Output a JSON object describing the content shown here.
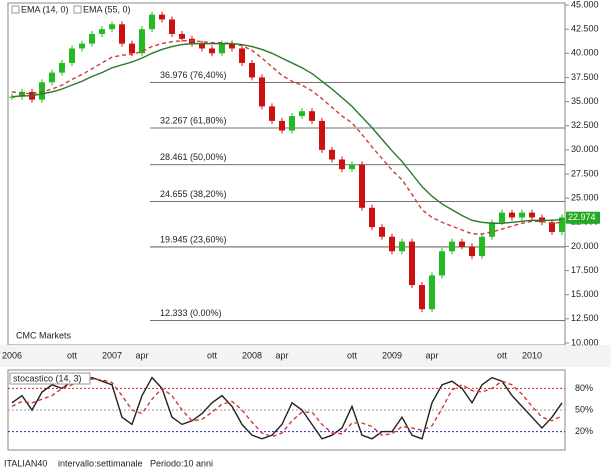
{
  "chart_data": [
    {
      "type": "candlestick",
      "watermark": "CMC Markets",
      "categories": [
        "2006",
        null,
        null,
        null,
        null,
        null,
        "ott",
        null,
        null,
        null,
        "2007",
        null,
        null,
        "apr",
        null,
        null,
        null,
        null,
        null,
        null,
        "ott",
        null,
        null,
        null,
        "2008",
        null,
        null,
        "apr",
        null,
        null,
        null,
        null,
        null,
        null,
        "ott",
        null,
        null,
        null,
        "2009",
        null,
        null,
        null,
        "apr",
        null,
        null,
        null,
        null,
        null,
        null,
        "ott",
        null,
        null,
        "2010",
        null,
        null,
        null
      ],
      "values": [
        35.5,
        36.0,
        35.2,
        37.0,
        38.0,
        39.0,
        40.5,
        41.0,
        42.0,
        42.5,
        43.0,
        41.0,
        40.0,
        42.5,
        44.0,
        43.5,
        42.0,
        41.5,
        41.0,
        40.5,
        40.0,
        41.0,
        40.5,
        39.0,
        37.5,
        34.5,
        33.0,
        32.0,
        33.5,
        34.0,
        33.0,
        30.0,
        29.0,
        28.0,
        28.5,
        24.0,
        22.0,
        21.0,
        19.5,
        20.5,
        16.0,
        13.5,
        17.0,
        19.5,
        20.5,
        20.0,
        19.0,
        21.0,
        22.5,
        23.5,
        23.0,
        23.5,
        23.0,
        22.5,
        21.5,
        23.0
      ],
      "up_color": "#22bb22",
      "down_color": "#cc1111",
      "series": [
        {
          "name": "EMA (14, 0)",
          "color": "#d03a3a",
          "dashed": true,
          "values": [
            36.0,
            35.9,
            35.8,
            36.0,
            36.3,
            36.7,
            37.3,
            37.8,
            38.4,
            39.0,
            39.6,
            39.8,
            39.9,
            40.2,
            40.7,
            41.0,
            41.2,
            41.3,
            41.3,
            41.2,
            41.1,
            41.1,
            41.0,
            40.8,
            40.3,
            39.5,
            38.6,
            37.7,
            37.1,
            36.7,
            36.1,
            35.3,
            34.4,
            33.5,
            32.8,
            31.6,
            30.3,
            29.1,
            27.9,
            26.9,
            25.4,
            23.8,
            23.0,
            22.5,
            22.1,
            21.7,
            21.3,
            21.3,
            21.5,
            21.8,
            22.1,
            22.4,
            22.6,
            22.6,
            22.4,
            22.5
          ]
        },
        {
          "name": "EMA (55, 0)",
          "color": "#2b7a2b",
          "dashed": false,
          "values": [
            35.5,
            35.6,
            35.6,
            35.8,
            36.0,
            36.3,
            36.7,
            37.1,
            37.6,
            38.0,
            38.5,
            38.8,
            39.1,
            39.5,
            40.0,
            40.4,
            40.7,
            40.9,
            41.0,
            41.0,
            41.0,
            41.0,
            41.0,
            40.9,
            40.7,
            40.4,
            40.0,
            39.5,
            39.0,
            38.5,
            37.9,
            37.1,
            36.3,
            35.4,
            34.5,
            33.4,
            32.3,
            31.1,
            29.9,
            28.8,
            27.5,
            26.2,
            25.2,
            24.4,
            23.8,
            23.2,
            22.7,
            22.5,
            22.4,
            22.4,
            22.5,
            22.6,
            22.7,
            22.7,
            22.7,
            22.8
          ]
        }
      ],
      "fib_levels": [
        {
          "value": 36.976,
          "label": "36.976  (76,40%)"
        },
        {
          "value": 32.267,
          "label": "32.267  (61,80%)"
        },
        {
          "value": 28.461,
          "label": "28.461  (50,00%)"
        },
        {
          "value": 24.655,
          "label": "24.655  (38,20%)"
        },
        {
          "value": 19.945,
          "label": "19.945  (23,60%)"
        },
        {
          "value": 12.333,
          "label": "12.333  (0.00%)"
        }
      ],
      "last_value": 22.974,
      "ylim": [
        10,
        45
      ],
      "yticks": [
        {
          "value": 45,
          "label": "45.000"
        },
        {
          "value": 42.5,
          "label": "42.500"
        },
        {
          "value": 40,
          "label": "40.000"
        },
        {
          "value": 37.5,
          "label": "37.500"
        },
        {
          "value": 35,
          "label": "35.000"
        },
        {
          "value": 32.5,
          "label": "32.500"
        },
        {
          "value": 30,
          "label": "30.000"
        },
        {
          "value": 27.5,
          "label": "27.500"
        },
        {
          "value": 25,
          "label": "25.000"
        },
        {
          "value": 22.5,
          "label": "22.500"
        },
        {
          "value": 20,
          "label": "20.000"
        },
        {
          "value": 17.5,
          "label": "17.500"
        },
        {
          "value": 15,
          "label": "15.000"
        },
        {
          "value": 12.5,
          "label": "12.500"
        },
        {
          "value": 10,
          "label": "10.000"
        }
      ]
    },
    {
      "type": "line",
      "title": "stocastico (14, 3)",
      "series": [
        {
          "color": "#222222",
          "dashed": false,
          "values": [
            60,
            70,
            50,
            75,
            85,
            80,
            90,
            92,
            95,
            90,
            85,
            40,
            30,
            70,
            95,
            80,
            40,
            30,
            35,
            45,
            60,
            70,
            55,
            30,
            15,
            10,
            15,
            30,
            60,
            50,
            30,
            10,
            15,
            25,
            55,
            15,
            10,
            20,
            20,
            40,
            15,
            10,
            60,
            85,
            90,
            80,
            60,
            85,
            95,
            90,
            70,
            55,
            40,
            25,
            40,
            60
          ]
        },
        {
          "color": "#d03a3a",
          "dashed": true,
          "values": [
            55,
            62,
            60,
            65,
            70,
            80,
            85,
            90,
            93,
            92,
            88,
            70,
            50,
            45,
            65,
            80,
            70,
            50,
            35,
            37,
            47,
            58,
            62,
            50,
            33,
            18,
            13,
            18,
            35,
            47,
            47,
            30,
            18,
            17,
            32,
            32,
            27,
            15,
            17,
            27,
            25,
            22,
            28,
            52,
            78,
            85,
            77,
            75,
            80,
            90,
            85,
            72,
            55,
            40,
            35,
            42
          ]
        }
      ],
      "ylim": [
        0,
        100
      ],
      "yticks": [
        {
          "value": 80,
          "label": "80%"
        },
        {
          "value": 50,
          "label": "50%"
        },
        {
          "value": 20,
          "label": "20%"
        }
      ],
      "tick_colors": [
        "#dd2222",
        "#999999",
        "#2222cc"
      ]
    }
  ],
  "footer": {
    "symbol": "ITALIAN40",
    "interval": "intervallo:settimanale",
    "period": "Periodo:10 anni"
  }
}
